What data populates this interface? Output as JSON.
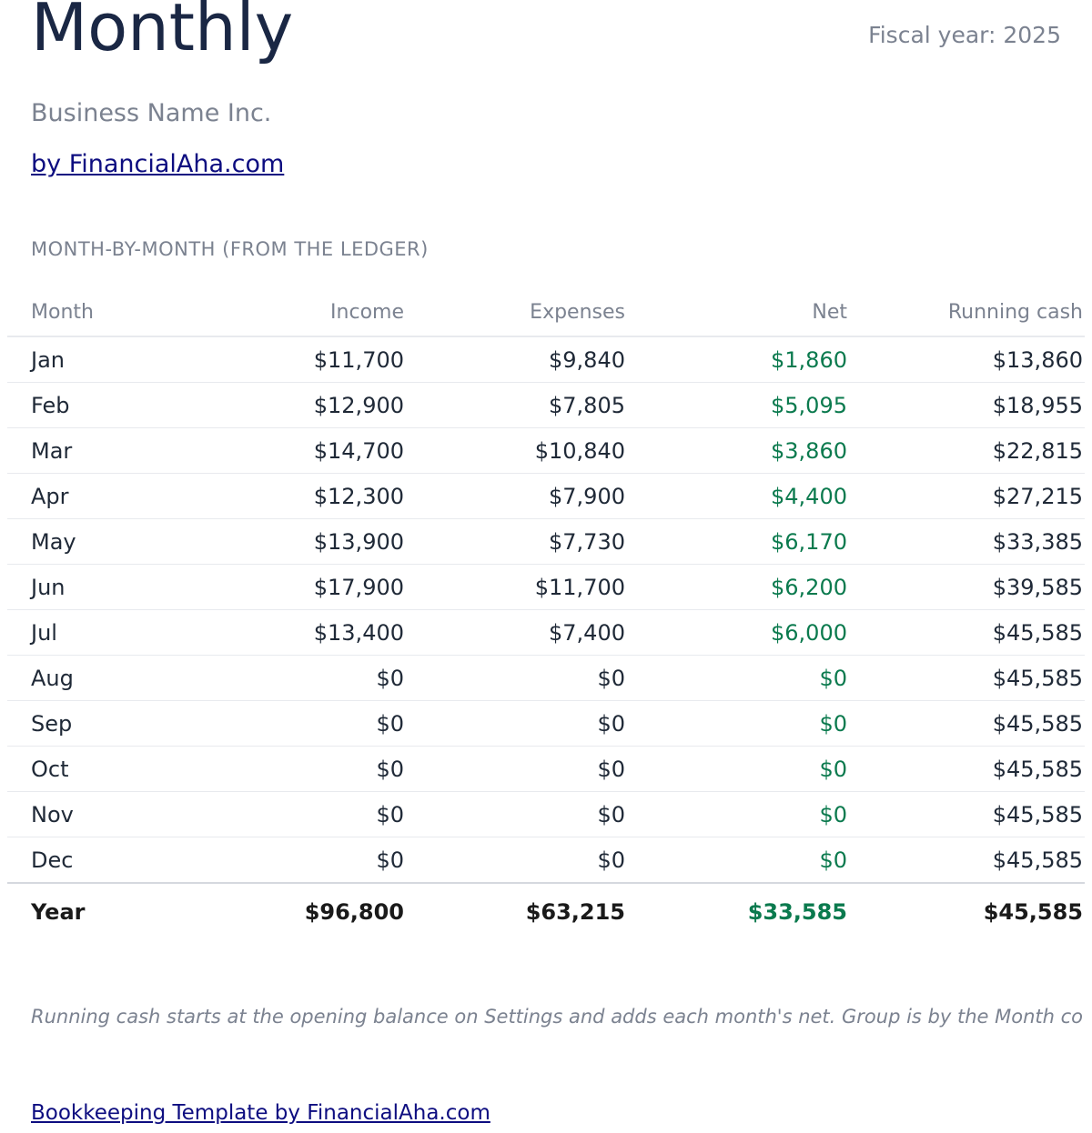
{
  "header": {
    "title": "Monthly",
    "fiscal_year": "Fiscal year: 2025",
    "business_name": "Business Name Inc.",
    "by_link": "by FinancialAha.com"
  },
  "section_label": "MONTH-BY-MONTH (FROM THE LEDGER)",
  "table": {
    "columns": [
      "Month",
      "Income",
      "Expenses",
      "Net",
      "Running cash"
    ],
    "rows": [
      [
        "Jan",
        "$11,700",
        "$9,840",
        "$1,860",
        "$13,860"
      ],
      [
        "Feb",
        "$12,900",
        "$7,805",
        "$5,095",
        "$18,955"
      ],
      [
        "Mar",
        "$14,700",
        "$10,840",
        "$3,860",
        "$22,815"
      ],
      [
        "Apr",
        "$12,300",
        "$7,900",
        "$4,400",
        "$27,215"
      ],
      [
        "May",
        "$13,900",
        "$7,730",
        "$6,170",
        "$33,385"
      ],
      [
        "Jun",
        "$17,900",
        "$11,700",
        "$6,200",
        "$39,585"
      ],
      [
        "Jul",
        "$13,400",
        "$7,400",
        "$6,000",
        "$45,585"
      ],
      [
        "Aug",
        "$0",
        "$0",
        "$0",
        "$45,585"
      ],
      [
        "Sep",
        "$0",
        "$0",
        "$0",
        "$45,585"
      ],
      [
        "Oct",
        "$0",
        "$0",
        "$0",
        "$45,585"
      ],
      [
        "Nov",
        "$0",
        "$0",
        "$0",
        "$45,585"
      ],
      [
        "Dec",
        "$0",
        "$0",
        "$0",
        "$45,585"
      ]
    ],
    "total": [
      "Year",
      "$96,800",
      "$63,215",
      "$33,585",
      "$45,585"
    ]
  },
  "footnote": "Running cash starts at the opening balance on Settings and adds each month's net. Group is by the Month col",
  "footer_link": "Bookkeeping Template by FinancialAha.com",
  "colors": {
    "title": "#1a2744",
    "muted": "#7b8290",
    "link": "#0d0d80",
    "positive": "#0b7a4e"
  }
}
